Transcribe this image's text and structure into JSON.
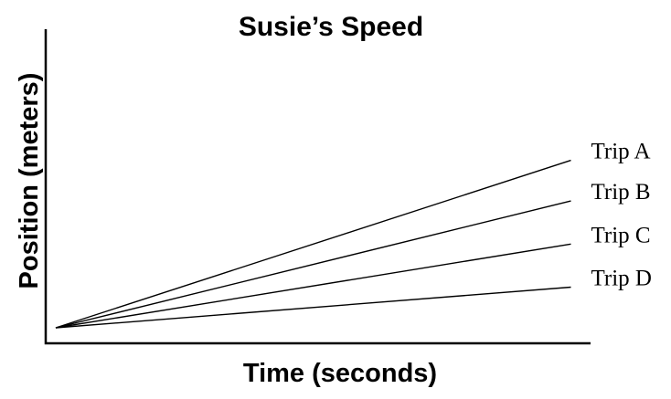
{
  "chart_data": {
    "type": "line",
    "title": "Susie’s Speed",
    "xlabel": "Time (seconds)",
    "ylabel": "Position (meters)",
    "x_ticks_shown": false,
    "y_ticks_shown": false,
    "grid": false,
    "legend": "labels at line ends (right)",
    "xlim": [
      0,
      10
    ],
    "ylim": [
      0,
      10
    ],
    "series": [
      {
        "name": "Trip A",
        "x": [
          0,
          9.8
        ],
        "y": [
          0,
          7.0
        ]
      },
      {
        "name": "Trip B",
        "x": [
          0,
          9.8
        ],
        "y": [
          0,
          5.3
        ]
      },
      {
        "name": "Trip C",
        "x": [
          0,
          9.8
        ],
        "y": [
          0,
          3.5
        ]
      },
      {
        "name": "Trip D",
        "x": [
          0,
          9.8
        ],
        "y": [
          0,
          1.7
        ]
      }
    ]
  }
}
